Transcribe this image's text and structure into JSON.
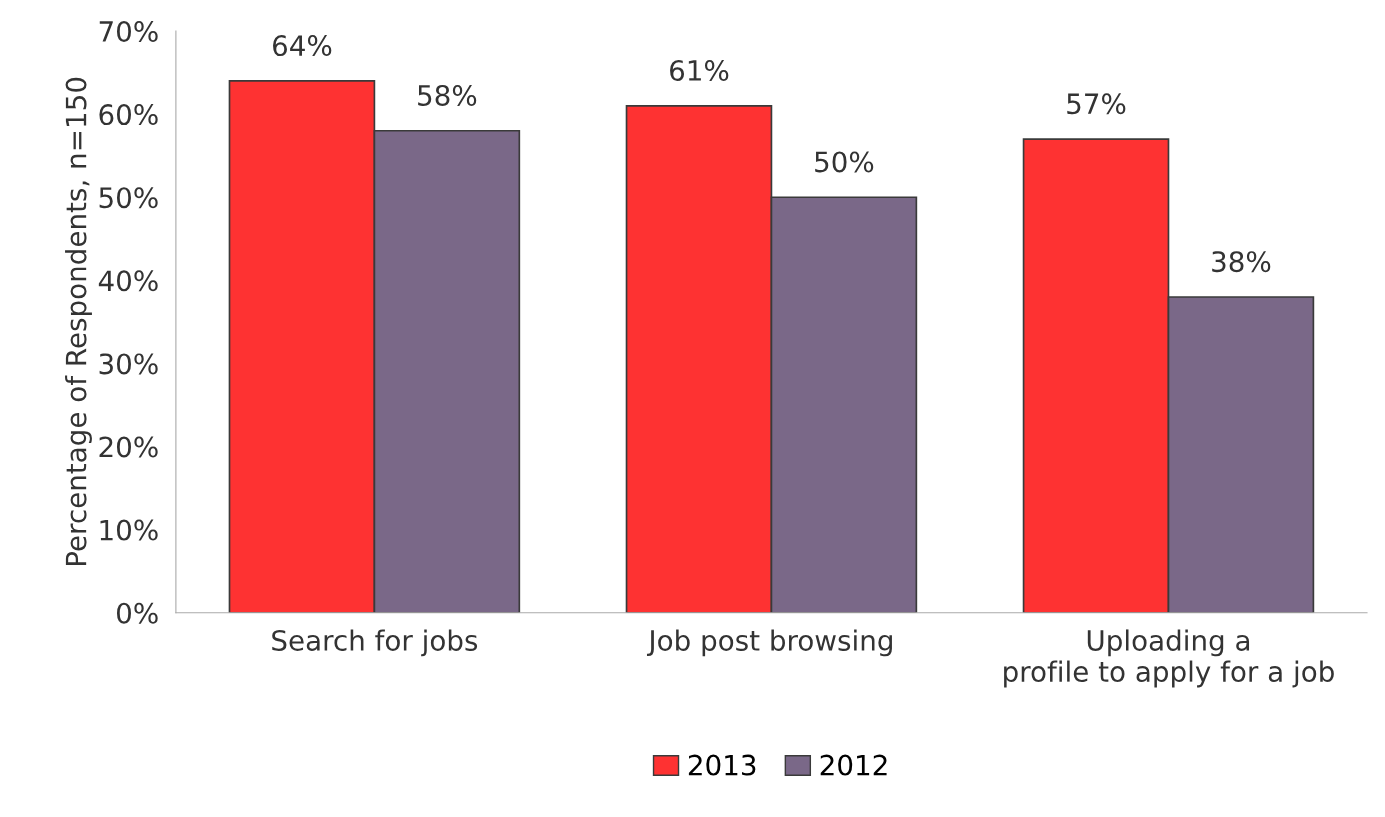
{
  "chart_data": {
    "type": "bar",
    "ylabel": "Percentage of Respondents, n=150",
    "categories": [
      "Search for jobs",
      "Job post browsing",
      "Uploading a\nprofile to apply for a job"
    ],
    "series": [
      {
        "name": "2013",
        "color": "#fe3232",
        "values": [
          64,
          61,
          57
        ],
        "value_labels": [
          "64%",
          "61%",
          "57%"
        ]
      },
      {
        "name": "2012",
        "color": "#7a6888",
        "values": [
          58,
          50,
          38
        ],
        "value_labels": [
          "58%",
          "50%",
          "38%"
        ]
      }
    ],
    "ylim": [
      0,
      70
    ],
    "yticks": [
      {
        "value": 0,
        "label": "0%"
      },
      {
        "value": 10,
        "label": "10%"
      },
      {
        "value": 20,
        "label": "20%"
      },
      {
        "value": 30,
        "label": "30%"
      },
      {
        "value": 40,
        "label": "40%"
      },
      {
        "value": 50,
        "label": "50%"
      },
      {
        "value": 60,
        "label": "60%"
      },
      {
        "value": 70,
        "label": "70%"
      }
    ],
    "legend": "bottom",
    "grid": false
  }
}
